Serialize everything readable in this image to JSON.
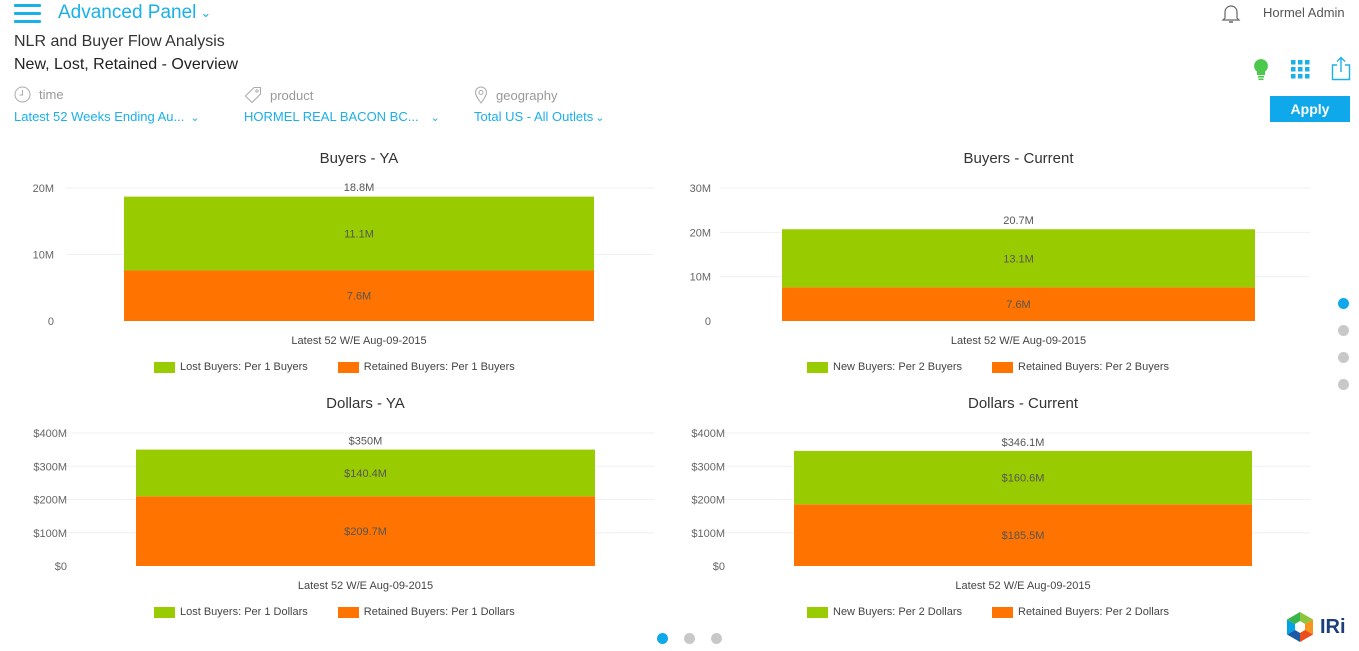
{
  "header": {
    "menu_icon": "hamburger-icon",
    "panel_title": "Advanced Panel",
    "panel_chevron": "⌄",
    "report_title": "NLR and Buyer Flow Analysis",
    "report_subtitle": "New, Lost, Retained - Overview",
    "user_name": "Hormel Admin",
    "icons": [
      "bell-icon",
      "lightbulb-icon",
      "grid-icon",
      "share-icon"
    ]
  },
  "filters": [
    {
      "label": "time",
      "icon": "clock-icon",
      "value": "Latest 52 Weeks Ending Au...",
      "chevron": "⌄"
    },
    {
      "label": "product",
      "icon": "tag-icon",
      "value": "HORMEL REAL BACON BC...",
      "chevron": "⌄"
    },
    {
      "label": "geography",
      "icon": "location-pin-icon",
      "value": "Total US - All Outlets",
      "chevron": "⌄"
    }
  ],
  "apply_label": "Apply",
  "colors": {
    "accent": "#0fa8ea",
    "green": "#99cc00",
    "orange": "#ff7300",
    "lightbulb": "#4cc94c",
    "dot_inactive": "#c8c8c8"
  },
  "chart_data": [
    {
      "type": "bar",
      "stacked": true,
      "title": "Buyers - YA",
      "categories": [
        "Latest 52 W/E Aug-09-2015"
      ],
      "yticks": [
        "0",
        "10M",
        "20M"
      ],
      "ylim": [
        0,
        20
      ],
      "unit": "M",
      "series": [
        {
          "name": "Retained Buyers: Per 1 Buyers",
          "values": [
            7.6
          ],
          "label": "7.6M",
          "color": "#ff7300"
        },
        {
          "name": "Lost Buyers: Per 1 Buyers",
          "values": [
            11.1
          ],
          "label": "11.1M",
          "color": "#99cc00"
        }
      ],
      "total_label": "18.8M",
      "total": 18.8,
      "legend": [
        "Lost Buyers: Per 1 Buyers",
        "Retained Buyers: Per 1 Buyers"
      ],
      "legend_position": "bottom",
      "grid": true
    },
    {
      "type": "bar",
      "stacked": true,
      "title": "Buyers - Current",
      "categories": [
        "Latest 52 W/E Aug-09-2015"
      ],
      "yticks": [
        "0",
        "10M",
        "20M",
        "30M"
      ],
      "ylim": [
        0,
        30
      ],
      "unit": "M",
      "series": [
        {
          "name": "Retained Buyers: Per 2 Buyers",
          "values": [
            7.6
          ],
          "label": "7.6M",
          "color": "#ff7300"
        },
        {
          "name": "New Buyers: Per 2 Buyers",
          "values": [
            13.1
          ],
          "label": "13.1M",
          "color": "#99cc00"
        }
      ],
      "total_label": "20.7M",
      "total": 20.7,
      "legend": [
        "New Buyers: Per 2 Buyers",
        "Retained Buyers: Per 2 Buyers"
      ],
      "legend_position": "bottom",
      "grid": true
    },
    {
      "type": "bar",
      "stacked": true,
      "title": "Dollars - YA",
      "categories": [
        "Latest 52 W/E Aug-09-2015"
      ],
      "yticks": [
        "$0",
        "$100M",
        "$200M",
        "$300M",
        "$400M"
      ],
      "ylim": [
        0,
        400
      ],
      "unit": "$M",
      "series": [
        {
          "name": "Retained Buyers: Per 1 Dollars",
          "values": [
            209.7
          ],
          "label": "$209.7M",
          "color": "#ff7300"
        },
        {
          "name": "Lost Buyers: Per 1 Dollars",
          "values": [
            140.4
          ],
          "label": "$140.4M",
          "color": "#99cc00"
        }
      ],
      "total_label": "$350M",
      "total": 350,
      "legend": [
        "Lost Buyers: Per 1 Dollars",
        "Retained Buyers: Per 1 Dollars"
      ],
      "legend_position": "bottom",
      "grid": true
    },
    {
      "type": "bar",
      "stacked": true,
      "title": "Dollars - Current",
      "categories": [
        "Latest 52 W/E Aug-09-2015"
      ],
      "yticks": [
        "$0",
        "$100M",
        "$200M",
        "$300M",
        "$400M"
      ],
      "ylim": [
        0,
        400
      ],
      "unit": "$M",
      "series": [
        {
          "name": "Retained Buyers: Per 2 Dollars",
          "values": [
            185.5
          ],
          "label": "$185.5M",
          "color": "#ff7300"
        },
        {
          "name": "New Buyers: Per 2 Dollars",
          "values": [
            160.6
          ],
          "label": "$160.6M",
          "color": "#99cc00"
        }
      ],
      "total_label": "$346.1M",
      "total": 346.1,
      "legend": [
        "New Buyers: Per 2 Dollars",
        "Retained Buyers: Per 2 Dollars"
      ],
      "legend_position": "bottom",
      "grid": true
    }
  ],
  "pagination": {
    "vertical": {
      "count": 4,
      "active": 1
    },
    "horizontal": {
      "count": 3,
      "active": 1
    }
  },
  "logo": {
    "text": "IRi"
  }
}
